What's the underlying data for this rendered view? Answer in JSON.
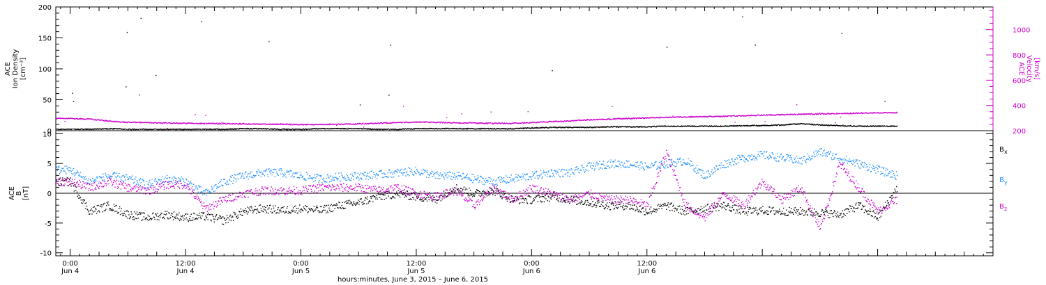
{
  "chart_data": [
    {
      "type": "scatter",
      "panel": "top",
      "left_axis": {
        "label_lines": [
          "ACE",
          "Ion Density",
          "[cm⁻³]"
        ],
        "ylim": [
          0,
          200
        ],
        "ticks": [
          "0",
          "50",
          "100",
          "150",
          "200"
        ]
      },
      "right_axis": {
        "label_lines": [
          "ACE",
          "Velocity",
          "[km/s]"
        ],
        "ylim": [
          200,
          1180
        ],
        "ticks": [
          "200",
          "400",
          "600",
          "800",
          "1000"
        ]
      },
      "series": [
        {
          "color": "#000000",
          "hours": [
            0,
            2,
            4,
            6,
            8,
            10,
            12,
            14,
            16,
            18,
            20,
            22,
            24,
            26,
            28,
            30,
            32,
            34,
            36,
            38,
            40,
            42,
            44,
            46,
            48,
            50,
            52,
            54,
            56,
            58,
            60,
            62,
            64,
            66,
            68,
            70,
            72,
            74,
            76,
            78,
            80,
            82,
            84,
            86
          ],
          "values": [
            3,
            3,
            4,
            3,
            3,
            3,
            3,
            3,
            3,
            4,
            4,
            3,
            3,
            4,
            4,
            4,
            3,
            3,
            4,
            4,
            4,
            4,
            4,
            4,
            5,
            6,
            6,
            6,
            7,
            7,
            7,
            8,
            8,
            8,
            8,
            9,
            9,
            10,
            12,
            10,
            9,
            8,
            8,
            8
          ]
        },
        {
          "color": "#cc00cc",
          "hours": [
            0,
            2,
            4,
            6,
            8,
            10,
            12,
            14,
            16,
            18,
            20,
            22,
            24,
            26,
            28,
            30,
            32,
            34,
            36,
            38,
            40,
            42,
            44,
            46,
            48,
            50,
            52,
            54,
            56,
            58,
            60,
            62,
            64,
            66,
            68,
            70,
            72,
            74,
            76,
            78,
            80,
            82,
            84,
            86
          ],
          "values": [
            300,
            295,
            280,
            270,
            268,
            265,
            262,
            260,
            260,
            258,
            255,
            255,
            252,
            252,
            255,
            258,
            262,
            268,
            272,
            270,
            266,
            264,
            262,
            262,
            268,
            275,
            282,
            290,
            295,
            300,
            305,
            310,
            312,
            315,
            318,
            322,
            326,
            330,
            334,
            337,
            340,
            343,
            345,
            346
          ]
        }
      ]
    },
    {
      "type": "scatter",
      "panel": "bottom",
      "left_axis": {
        "label_lines": [
          "ACE",
          "B",
          "[nT]"
        ],
        "ylim": [
          -10.5,
          10.5
        ],
        "ticks": [
          "-10",
          "-5",
          "0",
          "5",
          "10"
        ]
      },
      "legend": [
        "B_x",
        "B_y",
        "B_z"
      ],
      "series": [
        {
          "name": "Bx",
          "label": "B",
          "sub": "x",
          "color": "#000000",
          "hours": [
            0,
            2,
            4,
            6,
            8,
            10,
            12,
            14,
            16,
            18,
            20,
            22,
            24,
            26,
            28,
            30,
            32,
            34,
            36,
            38,
            40,
            42,
            44,
            46,
            48,
            50,
            52,
            54,
            56,
            58,
            60,
            62,
            64,
            66,
            68,
            70,
            72,
            74,
            76,
            78,
            80,
            82,
            84,
            86
          ],
          "values": [
            2,
            -3,
            -2,
            -3.5,
            -4,
            -3.5,
            -4,
            -3.8,
            -4.5,
            -3,
            -2.5,
            -2.8,
            -2.5,
            -2.8,
            -2,
            -1.5,
            -0.5,
            0,
            -0.5,
            -1,
            1,
            0,
            0.5,
            -1,
            -1,
            -0.5,
            -1,
            -1.5,
            -2,
            -2,
            -3,
            -2,
            -3,
            -2.5,
            -2,
            -3,
            -2.8,
            -3,
            -3,
            -3.2,
            -3.5,
            -2,
            -4,
            1
          ]
        },
        {
          "name": "By",
          "label": "B",
          "sub": "y",
          "color": "#1e90ff",
          "hours": [
            0,
            2,
            4,
            6,
            8,
            10,
            12,
            14,
            16,
            18,
            20,
            22,
            24,
            26,
            28,
            30,
            32,
            34,
            36,
            38,
            40,
            42,
            44,
            46,
            48,
            50,
            52,
            54,
            56,
            58,
            60,
            62,
            64,
            66,
            68,
            70,
            72,
            74,
            76,
            78,
            80,
            82,
            84,
            86
          ],
          "values": [
            4,
            2,
            3,
            2.5,
            1.5,
            2.5,
            2,
            0,
            2,
            3,
            3.5,
            3.5,
            3,
            2.5,
            2.8,
            3,
            3.2,
            3.5,
            3.8,
            3,
            3,
            2.5,
            2,
            2.5,
            3,
            3.5,
            3.5,
            4.5,
            5,
            5,
            4.5,
            5,
            5.5,
            3,
            5,
            6,
            6.5,
            6,
            5.5,
            7,
            6,
            5,
            4,
            3
          ]
        },
        {
          "name": "Bz",
          "label": "B",
          "sub": "z",
          "color": "#cc00cc",
          "hours": [
            0,
            2,
            4,
            6,
            8,
            10,
            12,
            14,
            16,
            18,
            20,
            22,
            24,
            26,
            28,
            30,
            32,
            34,
            36,
            38,
            40,
            42,
            44,
            46,
            48,
            50,
            52,
            54,
            56,
            58,
            60,
            62,
            64,
            66,
            68,
            70,
            72,
            74,
            76,
            78,
            80,
            82,
            84,
            86
          ],
          "values": [
            2,
            1,
            2,
            1,
            0.5,
            1.5,
            1.5,
            -2.5,
            -1,
            0,
            0.5,
            0.5,
            0.5,
            1,
            1,
            1,
            0.5,
            1,
            0,
            -0.5,
            0.5,
            -2,
            1,
            -1,
            1,
            0,
            -1,
            0,
            -1,
            -1,
            -2,
            7,
            -2,
            -4,
            0,
            -2,
            2,
            -1,
            1,
            -6,
            5,
            1,
            -3,
            -1
          ]
        }
      ]
    }
  ],
  "x_axis": {
    "hours_range": [
      -1.5,
      96
    ],
    "ticks": [
      {
        "hour": 0,
        "time": "0:00",
        "date": "Jun 4"
      },
      {
        "hour": 12,
        "time": "12:00",
        "date": "Jun 4"
      },
      {
        "hour": 24,
        "time": "0:00",
        "date": "Jun 5"
      },
      {
        "hour": 36,
        "time": "12:00",
        "date": "Jun 5"
      },
      {
        "hour": 48,
        "time": "0:00",
        "date": "Jun 6"
      },
      {
        "hour": 60,
        "time": "12:00",
        "date": "Jun 6"
      }
    ],
    "title": "hours:minutes, June  3, 2015 – June  6, 2015"
  }
}
